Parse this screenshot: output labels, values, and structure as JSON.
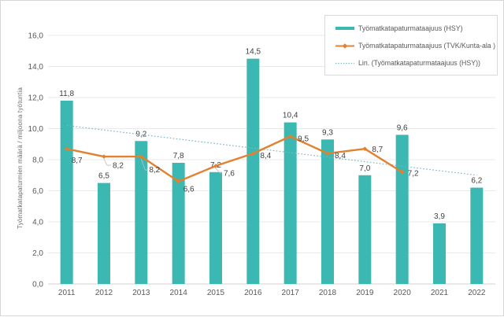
{
  "chart_data": {
    "type": "bar",
    "title": "",
    "categories": [
      "2011",
      "2012",
      "2013",
      "2014",
      "2015",
      "2016",
      "2017",
      "2018",
      "2019",
      "2020",
      "2021",
      "2022"
    ],
    "series": [
      {
        "name": "Työmatkatapaturmataajuus (HSY)",
        "type": "bar",
        "color": "#3ab8b1",
        "values": [
          11.8,
          6.5,
          9.2,
          7.8,
          7.2,
          14.5,
          10.4,
          9.3,
          7.0,
          9.6,
          3.9,
          6.2
        ],
        "labels": [
          "11,8",
          "6,5",
          "9,2",
          "7,8",
          "7,2",
          "14,5",
          "10,4",
          "9,3",
          "7,0",
          "9,6",
          "3,9",
          "6,2"
        ]
      },
      {
        "name": "Työmatkatapaturmataajuus (TVK/Kunta-ala )",
        "type": "line",
        "color": "#e2812f",
        "values": [
          8.7,
          8.2,
          8.2,
          6.6,
          7.6,
          8.4,
          9.5,
          8.4,
          8.7,
          7.2,
          null,
          null
        ],
        "labels": [
          "8,7",
          "8,2",
          "8,2",
          "6,6",
          "7,6",
          "8,4",
          "9,5",
          "8,4",
          "8,7",
          "7,2",
          "",
          ""
        ]
      },
      {
        "name": "Lin. (Työmatkatapaturmataajuus (HSY))",
        "type": "trendline",
        "style": "dotted",
        "color": "#7fb2c5",
        "start": 10.2,
        "end": 7.0
      }
    ],
    "xlabel": "",
    "ylabel": "Työmatkatapaturmien määrä / miljoona työtuntia",
    "ylim": [
      0,
      16
    ],
    "ytick_step": 2,
    "ytick_labels": [
      "0,0",
      "2,0",
      "4,0",
      "6,0",
      "8,0",
      "10,0",
      "12,0",
      "14,0",
      "16,0"
    ],
    "decimal_separator": ",",
    "grid": true,
    "data_labels": true,
    "legend_position": "top-right",
    "colors": {
      "gridline": "#e9e9e9",
      "axis_line": "#d2d2d2",
      "tick_text": "#595959",
      "data_label_text": "#3f3f3f",
      "leader_line": "#bfbfbf",
      "legend_border": "#d9d9d9"
    }
  }
}
